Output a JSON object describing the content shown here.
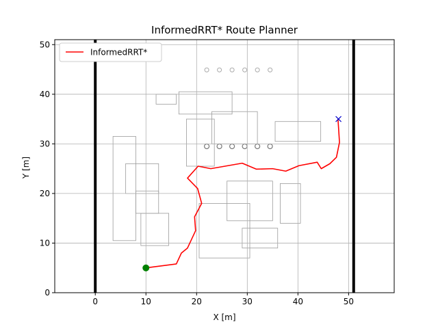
{
  "chart_data": {
    "type": "line",
    "title": "InformedRRT* Route Planner",
    "xlabel": "X [m]",
    "ylabel": "Y [m]",
    "xlim": [
      -8,
      59
    ],
    "ylim": [
      0,
      51
    ],
    "xticks": [
      0,
      10,
      20,
      30,
      40,
      50
    ],
    "yticks": [
      0,
      10,
      20,
      30,
      40,
      50
    ],
    "xtick_labels": [
      "0",
      "10",
      "20",
      "30",
      "40",
      "50"
    ],
    "ytick_labels": [
      "0",
      "10",
      "20",
      "30",
      "40",
      "50"
    ],
    "grid": true,
    "legend_position": "top-left",
    "series": [
      {
        "name": "InformedRRT*",
        "color": "#ff0000",
        "x": [
          10.0,
          16.0,
          17.0,
          18.2,
          19.8,
          19.6,
          21.0,
          20.2,
          18.2,
          20.3,
          22.8,
          29.0,
          31.8,
          35.0,
          37.6,
          40.2,
          43.8,
          44.6,
          46.3,
          47.6,
          48.2,
          48.0,
          47.9
        ],
        "y": [
          5.0,
          5.8,
          8.0,
          9.0,
          12.5,
          15.3,
          18.0,
          21.0,
          23.1,
          25.5,
          25.0,
          26.1,
          24.9,
          25.0,
          24.5,
          25.6,
          26.3,
          25.0,
          26.0,
          27.3,
          30.3,
          33.5,
          35.0
        ]
      }
    ],
    "markers": [
      {
        "name": "start",
        "x": 10.0,
        "y": 5.0,
        "shape": "circle",
        "color": "#008000"
      },
      {
        "name": "goal",
        "x": 48.0,
        "y": 35.0,
        "shape": "x",
        "color": "#0000cc"
      }
    ],
    "walls": {
      "x": [
        0,
        51
      ],
      "color": "#000000"
    }
  }
}
